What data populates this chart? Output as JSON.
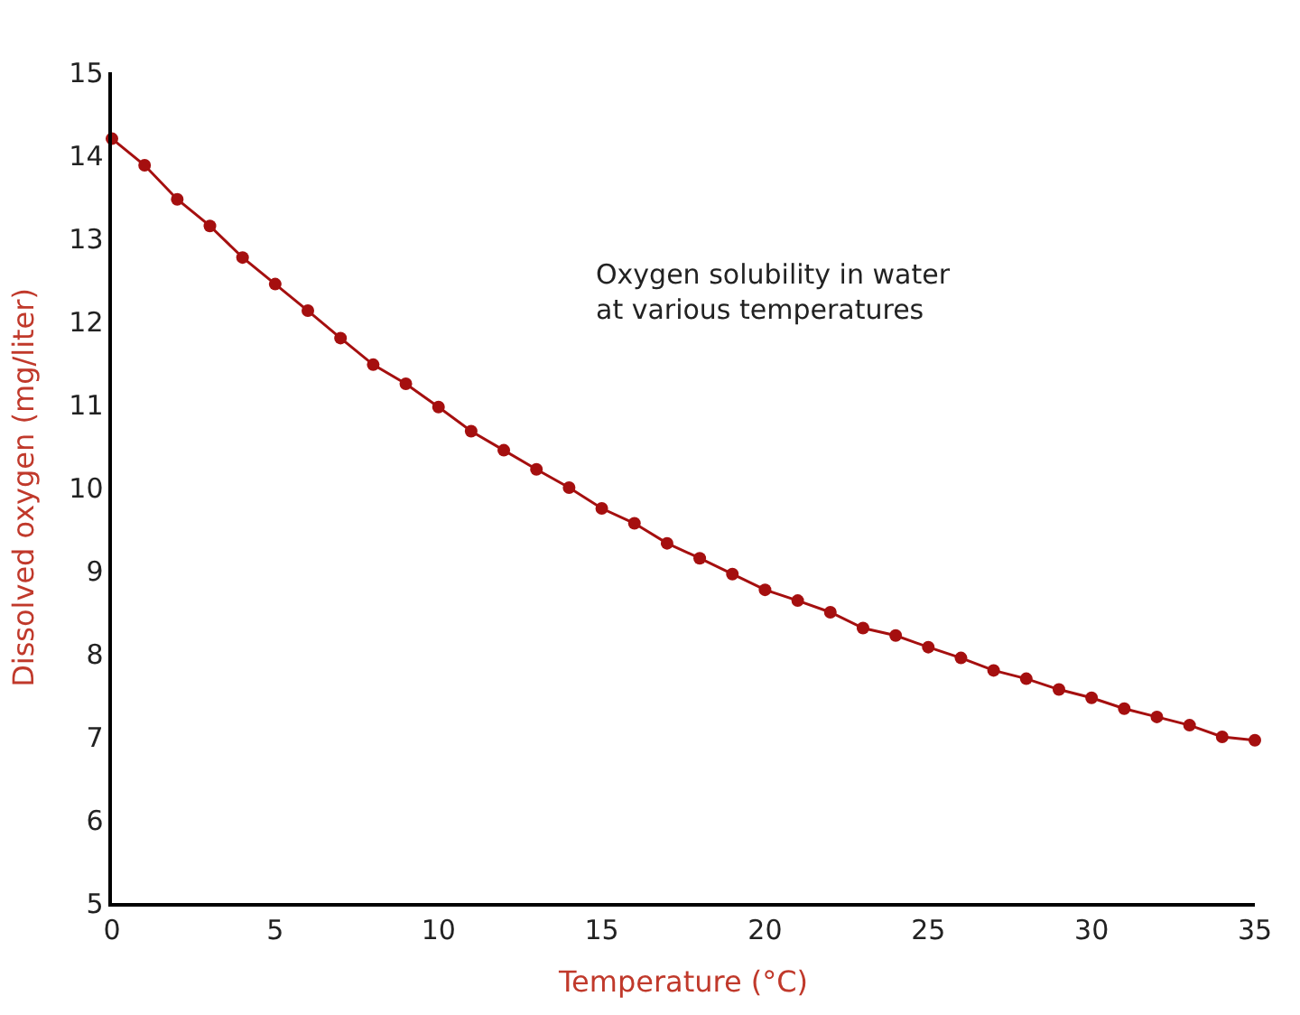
{
  "chart_data": {
    "type": "line",
    "xlabel": "Temperature (°C)",
    "ylabel": "Dissolved oxygen (mg/liter)",
    "annotations": [
      "Oxygen solubility in water\nat various temperatures"
    ],
    "x": [
      0,
      1,
      2,
      3,
      4,
      5,
      6,
      7,
      8,
      9,
      10,
      11,
      12,
      13,
      14,
      15,
      16,
      17,
      18,
      19,
      20,
      21,
      22,
      23,
      24,
      25,
      26,
      27,
      28,
      29,
      30,
      31,
      32,
      33,
      34,
      35
    ],
    "series": [
      {
        "color": "#a50f0f",
        "values": [
          14.2,
          13.88,
          13.47,
          13.15,
          12.77,
          12.45,
          12.13,
          11.8,
          11.48,
          11.25,
          10.97,
          10.68,
          10.45,
          10.22,
          10.0,
          9.75,
          9.57,
          9.33,
          9.15,
          8.96,
          8.77,
          8.64,
          8.5,
          8.31,
          8.22,
          8.08,
          7.95,
          7.8,
          7.7,
          7.57,
          7.47,
          7.34,
          7.24,
          7.14,
          7.0,
          6.96
        ]
      }
    ],
    "xlim": [
      0,
      35
    ],
    "xticks": [
      0,
      5,
      10,
      15,
      20,
      25,
      30,
      35
    ],
    "ylim": [
      5,
      15
    ],
    "yticks": [
      5,
      6,
      7,
      8,
      9,
      10,
      11,
      12,
      13,
      14,
      15
    ],
    "marker": "circle",
    "line_style": "solid"
  }
}
